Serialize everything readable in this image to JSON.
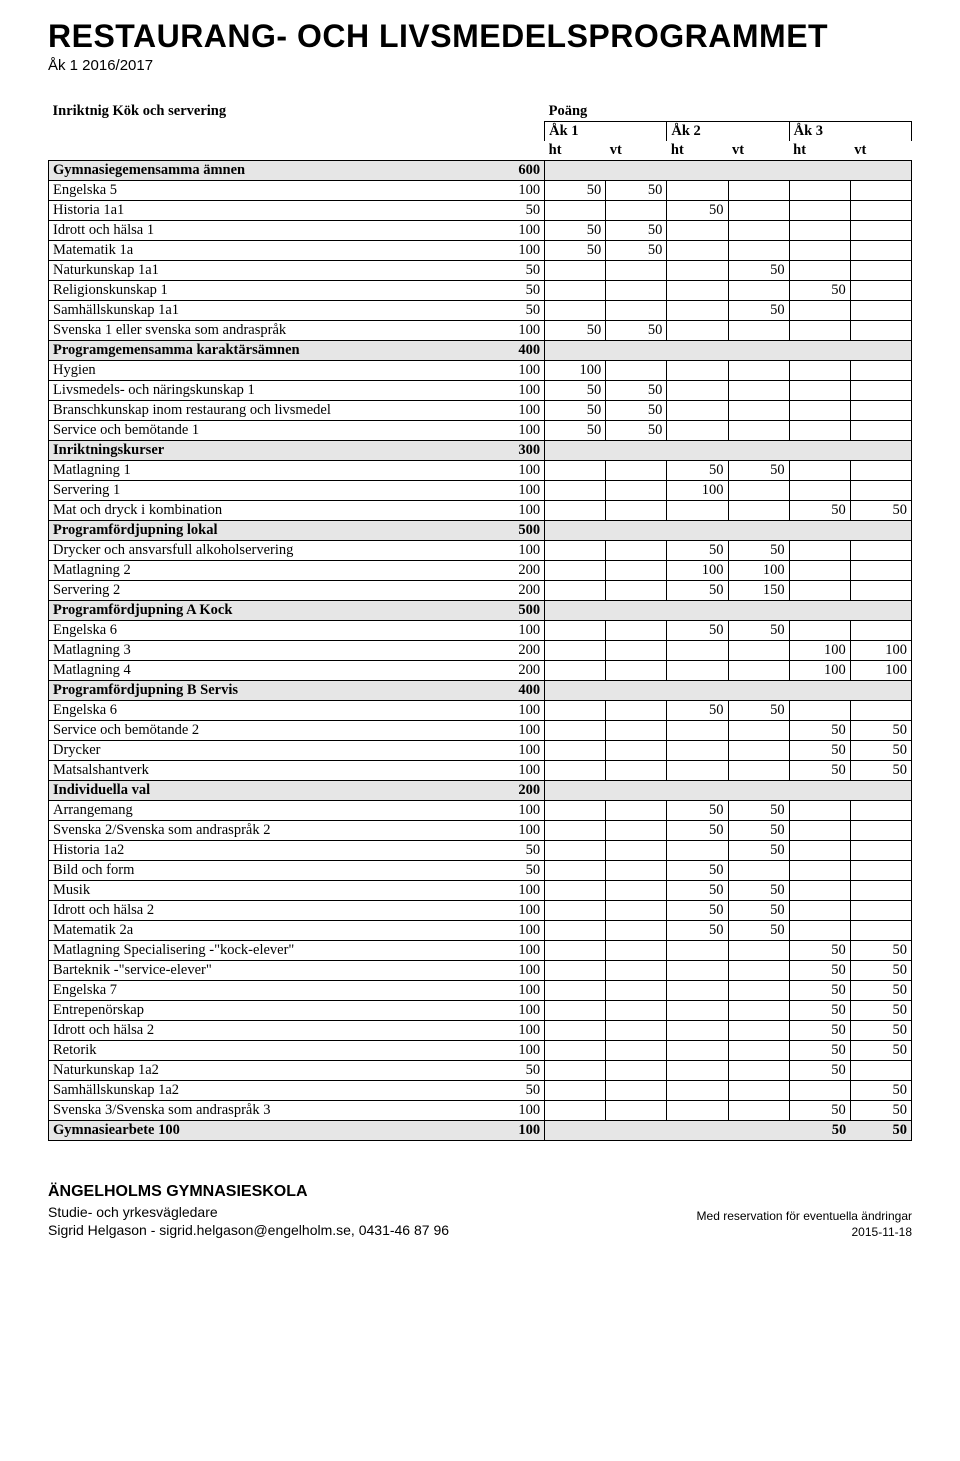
{
  "title": "RESTAURANG- OCH LIVSMEDELSPROGRAMMET",
  "subtitle": "Åk 1 2016/2017",
  "header": {
    "inriktning": "Inriktnig Kök och servering",
    "poang": "Poäng",
    "ak": [
      "Åk 1",
      "Åk 2",
      "Åk 3"
    ],
    "ht": "ht",
    "vt": "vt"
  },
  "sections": [
    {
      "label": "Gymnasiegemensamma ämnen",
      "total": 600,
      "rows": [
        {
          "name": "Engelska 5",
          "total": 100,
          "v": [
            50,
            50,
            "",
            "",
            "",
            ""
          ]
        },
        {
          "name": "Historia 1a1",
          "total": 50,
          "v": [
            "",
            "",
            50,
            "",
            "",
            ""
          ]
        },
        {
          "name": "Idrott och hälsa 1",
          "total": 100,
          "v": [
            50,
            50,
            "",
            "",
            "",
            ""
          ]
        },
        {
          "name": "Matematik 1a",
          "total": 100,
          "v": [
            50,
            50,
            "",
            "",
            "",
            ""
          ]
        },
        {
          "name": "Naturkunskap 1a1",
          "total": 50,
          "v": [
            "",
            "",
            "",
            50,
            "",
            ""
          ]
        },
        {
          "name": "Religionskunskap 1",
          "total": 50,
          "v": [
            "",
            "",
            "",
            "",
            50,
            ""
          ]
        },
        {
          "name": "Samhällskunskap 1a1",
          "total": 50,
          "v": [
            "",
            "",
            "",
            50,
            "",
            ""
          ]
        },
        {
          "name": "Svenska 1 eller svenska som andraspråk",
          "total": 100,
          "v": [
            50,
            50,
            "",
            "",
            "",
            ""
          ]
        }
      ]
    },
    {
      "label": "Programgemensamma karaktärsämnen",
      "total": 400,
      "rows": [
        {
          "name": "Hygien",
          "total": 100,
          "v": [
            100,
            "",
            "",
            "",
            "",
            ""
          ]
        },
        {
          "name": "Livsmedels- och näringskunskap 1",
          "total": 100,
          "v": [
            50,
            50,
            "",
            "",
            "",
            ""
          ]
        },
        {
          "name": "Branschkunskap inom restaurang och livsmedel",
          "total": 100,
          "v": [
            50,
            50,
            "",
            "",
            "",
            ""
          ]
        },
        {
          "name": "Service och bemötande 1",
          "total": 100,
          "v": [
            50,
            50,
            "",
            "",
            "",
            ""
          ]
        }
      ]
    },
    {
      "label": "Inriktningskurser",
      "total": 300,
      "rows": [
        {
          "name": "Matlagning 1",
          "total": 100,
          "v": [
            "",
            "",
            50,
            50,
            "",
            ""
          ]
        },
        {
          "name": "Servering 1",
          "total": 100,
          "v": [
            "",
            "",
            100,
            "",
            "",
            ""
          ]
        },
        {
          "name": "Mat och dryck i kombination",
          "total": 100,
          "v": [
            "",
            "",
            "",
            "",
            50,
            50
          ]
        }
      ]
    },
    {
      "label": "Programfördjupning lokal",
      "total": 500,
      "rows": [
        {
          "name": "Drycker och ansvarsfull alkoholservering",
          "total": 100,
          "v": [
            "",
            "",
            50,
            50,
            "",
            ""
          ]
        },
        {
          "name": "Matlagning 2",
          "total": 200,
          "v": [
            "",
            "",
            100,
            100,
            "",
            ""
          ]
        },
        {
          "name": "Servering 2",
          "total": 200,
          "v": [
            "",
            "",
            50,
            150,
            "",
            ""
          ]
        }
      ]
    },
    {
      "label": "Programfördjupning A Kock",
      "total": 500,
      "rows": [
        {
          "name": "Engelska 6",
          "total": 100,
          "v": [
            "",
            "",
            50,
            50,
            "",
            ""
          ]
        },
        {
          "name": "Matlagning 3",
          "total": 200,
          "v": [
            "",
            "",
            "",
            "",
            100,
            100
          ]
        },
        {
          "name": "Matlagning 4",
          "total": 200,
          "v": [
            "",
            "",
            "",
            "",
            100,
            100
          ]
        }
      ]
    },
    {
      "label": "Programfördjupning B Servis",
      "total": 400,
      "rows": [
        {
          "name": "Engelska 6",
          "total": 100,
          "v": [
            "",
            "",
            50,
            50,
            "",
            ""
          ]
        },
        {
          "name": "Service och bemötande 2",
          "total": 100,
          "v": [
            "",
            "",
            "",
            "",
            50,
            50
          ]
        },
        {
          "name": "Drycker",
          "total": 100,
          "v": [
            "",
            "",
            "",
            "",
            50,
            50
          ]
        },
        {
          "name": "Matsalshantverk",
          "total": 100,
          "v": [
            "",
            "",
            "",
            "",
            50,
            50
          ]
        }
      ]
    },
    {
      "label": "Individuella val",
      "total": 200,
      "rows": [
        {
          "name": "Arrangemang",
          "total": 100,
          "v": [
            "",
            "",
            50,
            50,
            "",
            ""
          ]
        },
        {
          "name": "Svenska 2/Svenska som andraspråk 2",
          "total": 100,
          "v": [
            "",
            "",
            50,
            50,
            "",
            ""
          ]
        },
        {
          "name": "Historia 1a2",
          "total": 50,
          "v": [
            "",
            "",
            "",
            50,
            "",
            ""
          ]
        },
        {
          "name": "Bild och form",
          "total": 50,
          "v": [
            "",
            "",
            50,
            "",
            "",
            ""
          ]
        },
        {
          "name": "Musik",
          "total": 100,
          "v": [
            "",
            "",
            50,
            50,
            "",
            ""
          ]
        },
        {
          "name": "Idrott och hälsa 2",
          "total": 100,
          "v": [
            "",
            "",
            50,
            50,
            "",
            ""
          ]
        },
        {
          "name": "Matematik 2a",
          "total": 100,
          "v": [
            "",
            "",
            50,
            50,
            "",
            ""
          ]
        },
        {
          "name": "Matlagning Specialisering -\"kock-elever\"",
          "total": 100,
          "v": [
            "",
            "",
            "",
            "",
            50,
            50
          ]
        },
        {
          "name": "Barteknik -\"service-elever\"",
          "total": 100,
          "v": [
            "",
            "",
            "",
            "",
            50,
            50
          ]
        },
        {
          "name": "Engelska 7",
          "total": 100,
          "v": [
            "",
            "",
            "",
            "",
            50,
            50
          ]
        },
        {
          "name": "Entrepenörskap",
          "total": 100,
          "v": [
            "",
            "",
            "",
            "",
            50,
            50
          ]
        },
        {
          "name": "Idrott och hälsa 2",
          "total": 100,
          "v": [
            "",
            "",
            "",
            "",
            50,
            50
          ]
        },
        {
          "name": "Retorik",
          "total": 100,
          "v": [
            "",
            "",
            "",
            "",
            50,
            50
          ]
        },
        {
          "name": "Naturkunskap 1a2",
          "total": 50,
          "v": [
            "",
            "",
            "",
            "",
            50,
            ""
          ]
        },
        {
          "name": "Samhällskunskap 1a2",
          "total": 50,
          "v": [
            "",
            "",
            "",
            "",
            "",
            50
          ]
        },
        {
          "name": "Svenska 3/Svenska som andraspråk 3",
          "total": 100,
          "v": [
            "",
            "",
            "",
            "",
            50,
            50
          ]
        }
      ]
    },
    {
      "label": "Gymnasiearbete 100",
      "total": 100,
      "trailing": [
        "",
        "",
        "",
        "",
        50,
        50
      ],
      "rows": []
    }
  ],
  "footer": {
    "school": "ÄNGELHOLMS GYMNASIESKOLA",
    "role": "Studie- och yrkesvägledare",
    "contact": "Sigrid Helgason - sigrid.helgason@engelholm.se, 0431-46 87 96",
    "disclaimer": "Med reservation för eventuella ändringar",
    "date": "2015-11-18"
  }
}
